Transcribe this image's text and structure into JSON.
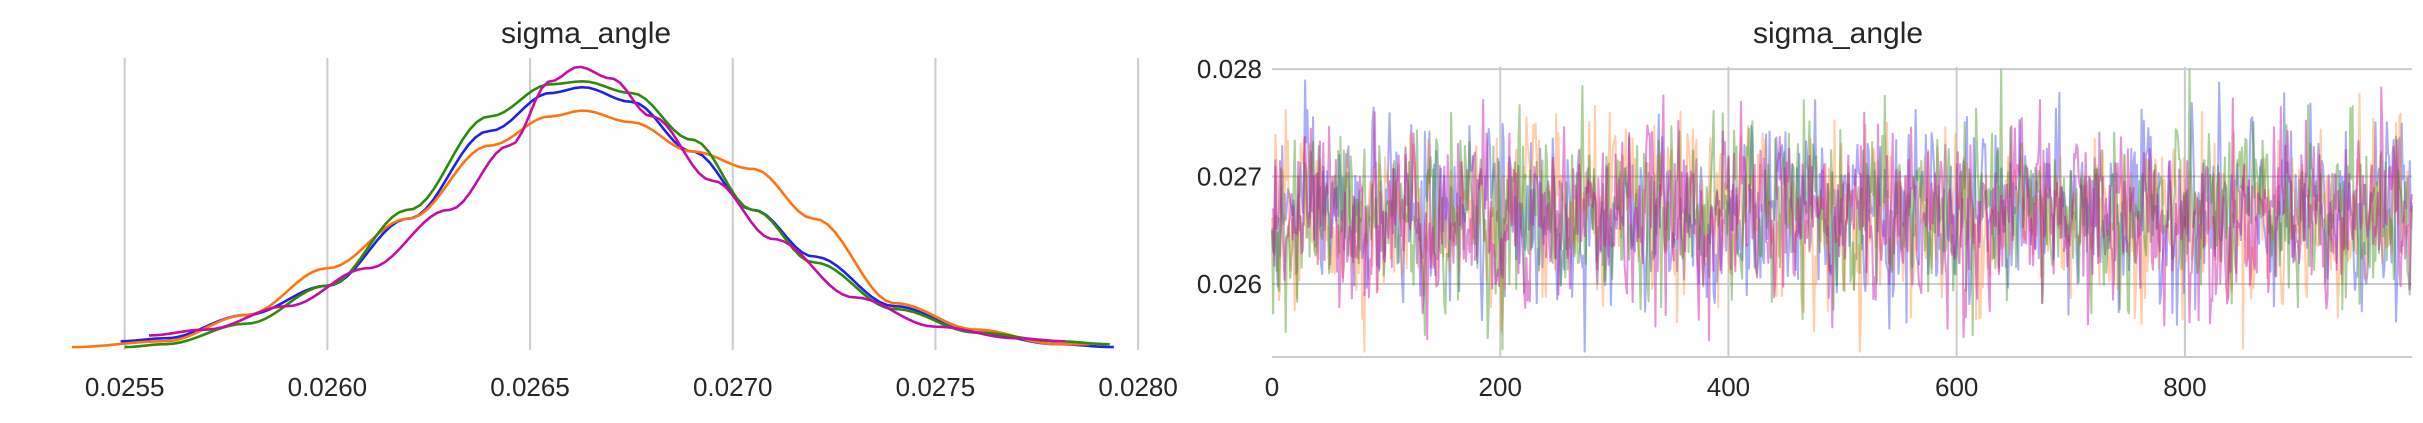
{
  "chart_data": [
    {
      "type": "line",
      "title": "sigma_angle",
      "xlabel": "",
      "ylabel": "",
      "xlim": [
        0.02537,
        0.02798
      ],
      "x_ticks": [
        0.0255,
        0.026,
        0.0265,
        0.027,
        0.0275,
        0.028
      ],
      "x_tick_labels": [
        "0.0255",
        "0.0260",
        "0.0265",
        "0.0270",
        "0.0275",
        "0.0280"
      ],
      "y_axis_visible": false,
      "grid": "vertical",
      "series": [
        {
          "color": "#1f23e6",
          "x": [
            0.02549,
            0.0256,
            0.0258,
            0.026,
            0.0262,
            0.0264,
            0.02655,
            0.02663,
            0.02675,
            0.0269,
            0.02705,
            0.0272,
            0.0274,
            0.0276,
            0.0278,
            0.02794
          ],
          "y": [
            0.03,
            0.04,
            0.12,
            0.22,
            0.45,
            0.75,
            0.88,
            0.9,
            0.85,
            0.68,
            0.48,
            0.32,
            0.15,
            0.06,
            0.02,
            0.01
          ]
        },
        {
          "color": "#ff7410",
          "x": [
            0.02537,
            0.0256,
            0.0258,
            0.026,
            0.0262,
            0.0264,
            0.02655,
            0.02663,
            0.02675,
            0.0269,
            0.02705,
            0.0272,
            0.0274,
            0.0276,
            0.0278,
            0.02788
          ],
          "y": [
            0.01,
            0.03,
            0.12,
            0.28,
            0.45,
            0.7,
            0.8,
            0.82,
            0.78,
            0.68,
            0.62,
            0.45,
            0.16,
            0.07,
            0.02,
            0.02
          ]
        },
        {
          "color": "#2e8a08",
          "x": [
            0.0255,
            0.0256,
            0.0258,
            0.026,
            0.0262,
            0.0264,
            0.02655,
            0.02663,
            0.02675,
            0.0269,
            0.02705,
            0.0272,
            0.0274,
            0.0276,
            0.0278,
            0.02793
          ],
          "y": [
            0.01,
            0.02,
            0.09,
            0.22,
            0.48,
            0.8,
            0.91,
            0.92,
            0.88,
            0.72,
            0.48,
            0.3,
            0.14,
            0.06,
            0.03,
            0.02
          ]
        },
        {
          "color": "#c40fa6",
          "x": [
            0.02556,
            0.0257,
            0.0259,
            0.0261,
            0.0263,
            0.02645,
            0.02655,
            0.02662,
            0.0267,
            0.0268,
            0.02695,
            0.0271,
            0.0273,
            0.0275,
            0.0277,
            0.02782
          ],
          "y": [
            0.05,
            0.07,
            0.15,
            0.28,
            0.48,
            0.7,
            0.92,
            0.97,
            0.93,
            0.8,
            0.58,
            0.38,
            0.18,
            0.08,
            0.04,
            0.03
          ]
        }
      ]
    },
    {
      "type": "line",
      "title": "sigma_angle",
      "xlabel": "",
      "ylabel": "",
      "xlim": [
        0,
        999
      ],
      "ylim": [
        0.02532,
        0.02802
      ],
      "x_ticks": [
        0,
        200,
        400,
        600,
        800
      ],
      "x_tick_labels": [
        "0",
        "200",
        "400",
        "600",
        "800"
      ],
      "y_ticks": [
        0.026,
        0.027,
        0.028
      ],
      "y_tick_labels": [
        "0.026",
        "0.027",
        "0.028"
      ],
      "grid": "both",
      "draws": 1000,
      "approx_mean": 0.02665,
      "approx_sd": 0.0004,
      "series": [
        {
          "color": "#2a34e8",
          "opacity": 0.4
        },
        {
          "color": "#ff7410",
          "opacity": 0.35
        },
        {
          "color": "#2e8a08",
          "opacity": 0.4
        },
        {
          "color": "#c40fa6",
          "opacity": 0.45
        }
      ]
    }
  ]
}
